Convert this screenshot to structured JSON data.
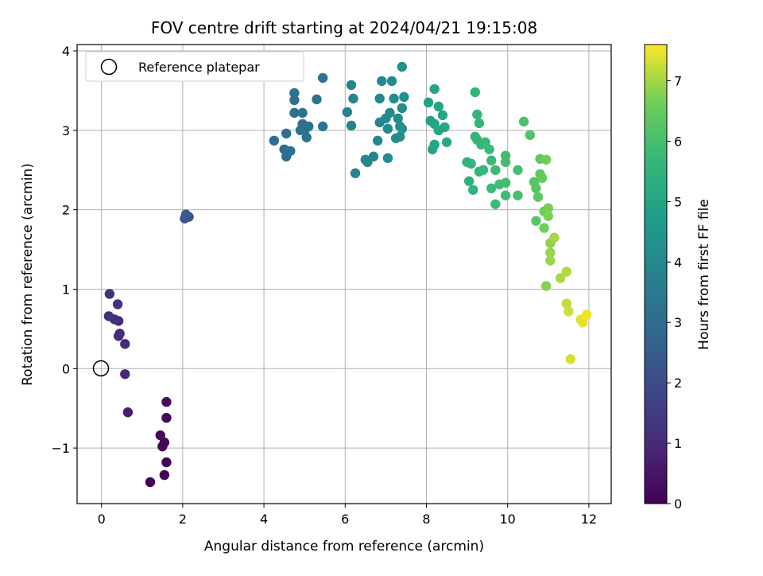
{
  "chart_data": {
    "type": "scatter",
    "title": "FOV centre drift starting at 2024/04/21 19:15:08",
    "xlabel": "Angular distance from reference (arcmin)",
    "ylabel": "Rotation from reference (arcmin)",
    "xlim": [
      -0.6,
      12.55
    ],
    "ylim": [
      -1.7,
      4.08
    ],
    "xticks": [
      0,
      2,
      4,
      6,
      8,
      10,
      12
    ],
    "yticks": [
      -1,
      0,
      1,
      2,
      3,
      4
    ],
    "grid": true,
    "legend": {
      "position": "top-left",
      "entries": [
        "Reference platepar"
      ]
    },
    "reference_point": {
      "x": 0,
      "y": 0
    },
    "colorbar": {
      "label": "Hours from first FF file",
      "colormap": "viridis",
      "range": [
        0,
        7.6
      ],
      "ticks": [
        0,
        1,
        2,
        3,
        4,
        5,
        6,
        7
      ]
    },
    "points": [
      [
        1.2,
        -1.43,
        0.05
      ],
      [
        1.55,
        -1.34,
        0.08
      ],
      [
        1.6,
        -1.18,
        0.1
      ],
      [
        1.5,
        -0.98,
        0.12
      ],
      [
        1.55,
        -0.93,
        0.14
      ],
      [
        1.45,
        -0.84,
        0.16
      ],
      [
        1.6,
        -0.62,
        0.18
      ],
      [
        1.6,
        -0.42,
        0.2
      ],
      [
        0.65,
        -0.55,
        0.7
      ],
      [
        0.58,
        -0.07,
        0.9
      ],
      [
        0.58,
        0.31,
        1.0
      ],
      [
        0.42,
        0.41,
        1.05
      ],
      [
        0.45,
        0.44,
        1.08
      ],
      [
        0.42,
        0.6,
        1.1
      ],
      [
        0.32,
        0.62,
        1.12
      ],
      [
        0.18,
        0.66,
        1.15
      ],
      [
        0.4,
        0.81,
        1.18
      ],
      [
        0.2,
        0.94,
        1.2
      ],
      [
        2.05,
        1.89,
        2.3
      ],
      [
        2.15,
        1.91,
        2.35
      ],
      [
        2.08,
        1.94,
        2.4
      ],
      [
        4.25,
        2.87,
        3.0
      ],
      [
        4.55,
        2.67,
        3.02
      ],
      [
        4.5,
        2.76,
        3.04
      ],
      [
        4.65,
        2.74,
        3.06
      ],
      [
        4.55,
        2.96,
        3.08
      ],
      [
        4.75,
        3.22,
        3.1
      ],
      [
        4.75,
        3.38,
        3.12
      ],
      [
        4.75,
        3.47,
        3.14
      ],
      [
        4.9,
        3.0,
        3.16
      ],
      [
        4.95,
        3.08,
        3.18
      ],
      [
        4.95,
        3.22,
        3.2
      ],
      [
        5.0,
        3.0,
        3.22
      ],
      [
        5.05,
        2.91,
        3.24
      ],
      [
        5.1,
        3.05,
        3.26
      ],
      [
        5.3,
        3.39,
        3.28
      ],
      [
        5.45,
        3.66,
        3.3
      ],
      [
        5.45,
        3.05,
        3.32
      ],
      [
        6.05,
        3.23,
        3.8
      ],
      [
        6.15,
        3.57,
        3.82
      ],
      [
        6.15,
        3.06,
        3.84
      ],
      [
        6.2,
        3.4,
        3.86
      ],
      [
        6.25,
        2.46,
        3.88
      ],
      [
        6.5,
        2.63,
        3.9
      ],
      [
        6.55,
        2.6,
        3.92
      ],
      [
        6.7,
        2.67,
        3.94
      ],
      [
        6.8,
        2.87,
        3.96
      ],
      [
        6.85,
        3.1,
        3.98
      ],
      [
        6.85,
        3.4,
        4.0
      ],
      [
        6.9,
        3.62,
        4.02
      ],
      [
        7.0,
        3.15,
        4.04
      ],
      [
        7.05,
        3.02,
        4.06
      ],
      [
        7.05,
        2.65,
        4.08
      ],
      [
        7.1,
        3.22,
        4.1
      ],
      [
        7.15,
        3.62,
        4.12
      ],
      [
        7.2,
        3.4,
        4.14
      ],
      [
        7.25,
        2.9,
        4.16
      ],
      [
        7.3,
        3.15,
        4.18
      ],
      [
        7.35,
        2.92,
        4.2
      ],
      [
        7.35,
        3.05,
        4.22
      ],
      [
        7.4,
        3.28,
        4.24
      ],
      [
        7.4,
        3.02,
        4.26
      ],
      [
        7.45,
        3.42,
        4.28
      ],
      [
        7.4,
        3.8,
        4.3
      ],
      [
        8.05,
        3.35,
        4.9
      ],
      [
        8.1,
        3.12,
        4.92
      ],
      [
        8.15,
        2.76,
        4.94
      ],
      [
        8.2,
        2.82,
        4.96
      ],
      [
        8.2,
        3.08,
        4.98
      ],
      [
        8.2,
        3.52,
        5.0
      ],
      [
        8.3,
        3.3,
        5.02
      ],
      [
        8.3,
        3.0,
        5.04
      ],
      [
        8.4,
        3.19,
        5.06
      ],
      [
        8.45,
        3.04,
        5.08
      ],
      [
        8.5,
        2.85,
        5.1
      ],
      [
        9.0,
        2.6,
        5.5
      ],
      [
        9.05,
        2.36,
        5.52
      ],
      [
        9.1,
        2.58,
        5.54
      ],
      [
        9.15,
        2.25,
        5.56
      ],
      [
        9.2,
        3.48,
        5.58
      ],
      [
        9.2,
        2.92,
        5.6
      ],
      [
        9.25,
        2.88,
        5.62
      ],
      [
        9.25,
        3.2,
        5.64
      ],
      [
        9.3,
        3.09,
        5.66
      ],
      [
        9.3,
        2.48,
        5.68
      ],
      [
        9.35,
        2.82,
        5.7
      ],
      [
        9.4,
        2.5,
        5.72
      ],
      [
        9.45,
        2.85,
        5.74
      ],
      [
        9.55,
        2.76,
        5.76
      ],
      [
        9.6,
        2.62,
        5.78
      ],
      [
        9.6,
        2.27,
        5.8
      ],
      [
        9.7,
        2.5,
        5.82
      ],
      [
        9.7,
        2.07,
        5.84
      ],
      [
        9.8,
        2.32,
        5.86
      ],
      [
        9.95,
        2.18,
        5.88
      ],
      [
        9.95,
        2.34,
        5.9
      ],
      [
        9.95,
        2.68,
        5.92
      ],
      [
        9.95,
        2.6,
        5.94
      ],
      [
        10.25,
        2.5,
        5.96
      ],
      [
        10.25,
        2.18,
        5.98
      ],
      [
        10.4,
        3.11,
        6.1
      ],
      [
        10.55,
        2.94,
        6.15
      ],
      [
        10.65,
        2.35,
        6.2
      ],
      [
        10.7,
        2.27,
        6.25
      ],
      [
        10.7,
        1.86,
        6.3
      ],
      [
        10.75,
        2.16,
        6.35
      ],
      [
        10.8,
        2.64,
        6.4
      ],
      [
        10.8,
        2.45,
        6.45
      ],
      [
        10.85,
        2.4,
        6.5
      ],
      [
        10.9,
        1.98,
        6.55
      ],
      [
        10.9,
        1.77,
        6.6
      ],
      [
        10.95,
        2.63,
        6.65
      ],
      [
        11.0,
        2.02,
        6.7
      ],
      [
        11.0,
        1.92,
        6.75
      ],
      [
        10.95,
        1.04,
        6.8
      ],
      [
        11.05,
        1.58,
        6.85
      ],
      [
        11.05,
        1.46,
        6.9
      ],
      [
        11.05,
        1.36,
        6.95
      ],
      [
        11.15,
        1.65,
        7.0
      ],
      [
        11.3,
        1.14,
        7.05
      ],
      [
        11.45,
        1.22,
        7.1
      ],
      [
        11.45,
        0.82,
        7.2
      ],
      [
        11.5,
        0.72,
        7.3
      ],
      [
        11.55,
        0.12,
        7.35
      ],
      [
        11.8,
        0.62,
        7.4
      ],
      [
        11.85,
        0.58,
        7.45
      ],
      [
        11.95,
        0.68,
        7.5
      ]
    ]
  }
}
